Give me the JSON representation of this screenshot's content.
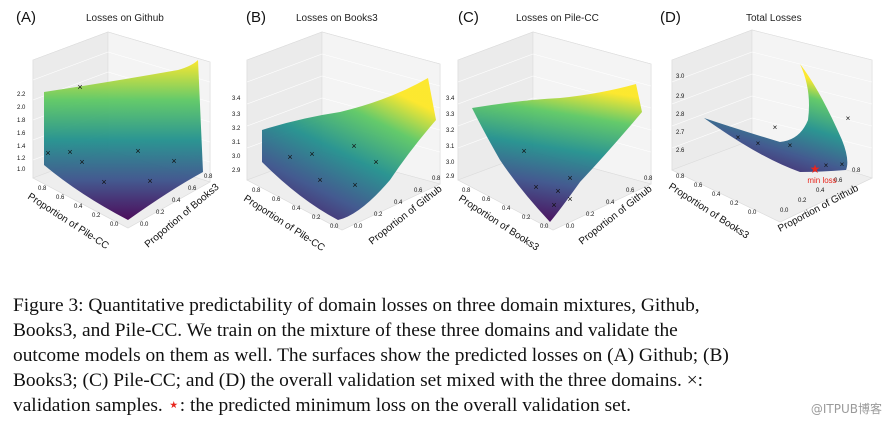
{
  "panels": [
    {
      "letter": "(A)",
      "title": "Losses on Github",
      "z_ticks": [
        "2.2",
        "2.0",
        "1.8",
        "1.6",
        "1.4",
        "1.2",
        "1.0"
      ],
      "left_axis": "Proportion of Pile-CC",
      "right_axis": "Proportion of Books3",
      "left_ticks": [
        "0.8",
        "0.6",
        "0.4",
        "0.2",
        "0.0"
      ],
      "right_ticks": [
        "0.0",
        "0.2",
        "0.4",
        "0.6",
        "0.8"
      ]
    },
    {
      "letter": "(B)",
      "title": "Losses on Books3",
      "z_ticks": [
        "3.4",
        "3.3",
        "3.2",
        "3.1",
        "3.0",
        "2.9"
      ],
      "left_axis": "Proportion of Pile-CC",
      "right_axis": "Proportion of Github",
      "left_ticks": [
        "0.8",
        "0.6",
        "0.4",
        "0.2",
        "0.0"
      ],
      "right_ticks": [
        "0.0",
        "0.2",
        "0.4",
        "0.6",
        "0.8"
      ]
    },
    {
      "letter": "(C)",
      "title": "Losses on Pile-CC",
      "z_ticks": [
        "3.4",
        "3.3",
        "3.2",
        "3.1",
        "3.0",
        "2.9"
      ],
      "left_axis": "Proportion of Books3",
      "right_axis": "Proportion of Github",
      "left_ticks": [
        "0.8",
        "0.6",
        "0.4",
        "0.2",
        "0.0"
      ],
      "right_ticks": [
        "0.0",
        "0.2",
        "0.4",
        "0.6",
        "0.8"
      ]
    },
    {
      "letter": "(D)",
      "title": "Total Losses",
      "z_ticks": [
        "3.0",
        "2.9",
        "2.8",
        "2.7",
        "2.6"
      ],
      "left_axis": "Proportion of Books3",
      "right_axis": "Proportion of Github",
      "left_ticks": [
        "0.8",
        "0.6",
        "0.4",
        "0.2",
        "0.0"
      ],
      "right_ticks": [
        "0.0",
        "0.2",
        "0.4",
        "0.6",
        "0.8"
      ],
      "annotation": "min loss"
    }
  ],
  "caption": {
    "line1": "Figure 3: Quantitative predictability of domain losses on three domain mixtures, Github,",
    "line2": "Books3, and Pile-CC. We train on the mixture of these three domains and validate the",
    "line3": "outcome models on them as well. The surfaces show the predicted losses on (A) Github; (B)",
    "line4": "Books3; (C) Pile-CC; and (D) the overall validation set mixed with the three domains. ×:",
    "line5a": "validation samples. ",
    "line5star": "⋆",
    "line5b": ": the predicted minimum loss on the overall validation set."
  },
  "watermark": "@ITPUB博客",
  "colors": {
    "low": "#440154",
    "mid": "#21908d",
    "high": "#fde725",
    "star": "#e8261d"
  }
}
